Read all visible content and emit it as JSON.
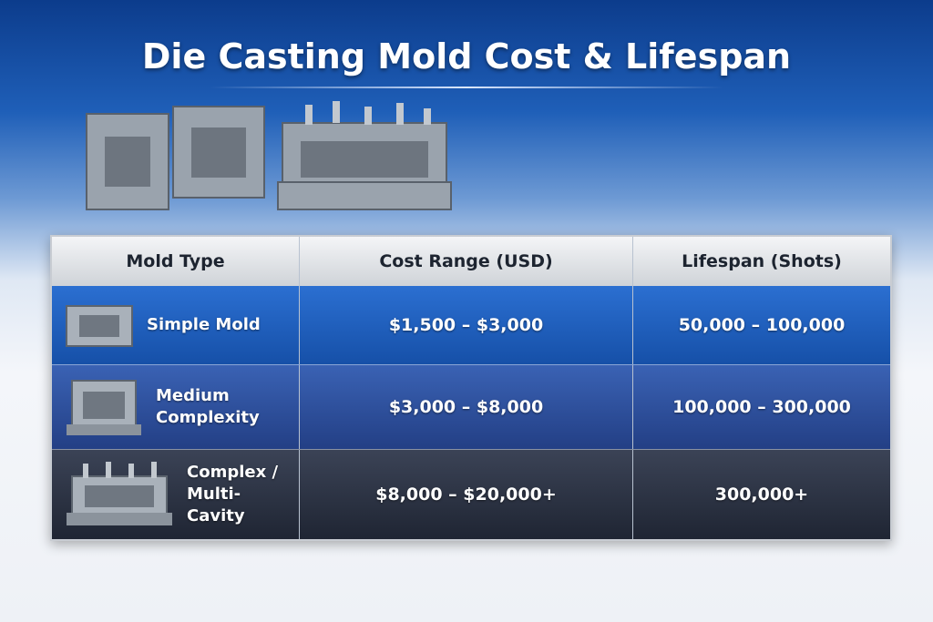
{
  "header": {
    "title": "Die Casting Mold Cost & Lifespan"
  },
  "table": {
    "columns": [
      "Mold Type",
      "Cost Range (USD)",
      "Lifespan (Shots)"
    ],
    "rows": [
      [
        "Simple Mold",
        "$1,500 – $3,000",
        "50,000 – 100,000"
      ],
      [
        "Medium Complexity",
        "$3,000 – $8,000",
        "100,000 – 300,000"
      ],
      [
        "Complex / Multi-Cavity",
        "$8,000 – $20,000+",
        "300,000+"
      ]
    ]
  }
}
